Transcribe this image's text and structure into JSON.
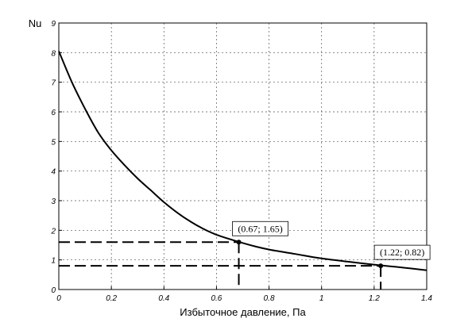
{
  "chart_data": {
    "type": "line",
    "title": "",
    "xlabel": "Избыточное давление, Па",
    "ylabel": "Nu",
    "xlim": [
      0,
      1.4
    ],
    "ylim": [
      0,
      9
    ],
    "grid": true,
    "x_ticks": [
      "0",
      "0.2",
      "0.4",
      "0.6",
      "0.8",
      "1",
      "1.2",
      "1.4"
    ],
    "y_ticks": [
      "0",
      "1",
      "2",
      "3",
      "4",
      "5",
      "6",
      "7",
      "8",
      "9"
    ],
    "series": [
      {
        "x": [
          0,
          0.05,
          0.1,
          0.15,
          0.2,
          0.25,
          0.3,
          0.35,
          0.4,
          0.45,
          0.5,
          0.55,
          0.6,
          0.67,
          0.75,
          0.8,
          0.9,
          1.0,
          1.1,
          1.22,
          1.3,
          1.4
        ],
        "y": [
          8.05,
          7.0,
          6.1,
          5.3,
          4.7,
          4.2,
          3.75,
          3.35,
          2.95,
          2.6,
          2.3,
          2.05,
          1.85,
          1.65,
          1.45,
          1.35,
          1.2,
          1.05,
          0.94,
          0.82,
          0.75,
          0.65
        ]
      }
    ],
    "annotations": [
      {
        "x": 0.685,
        "y": 1.6,
        "label": "(0.67; 1.65)"
      },
      {
        "x": 1.225,
        "y": 0.8,
        "label": "(1.22; 0.82)"
      }
    ]
  }
}
